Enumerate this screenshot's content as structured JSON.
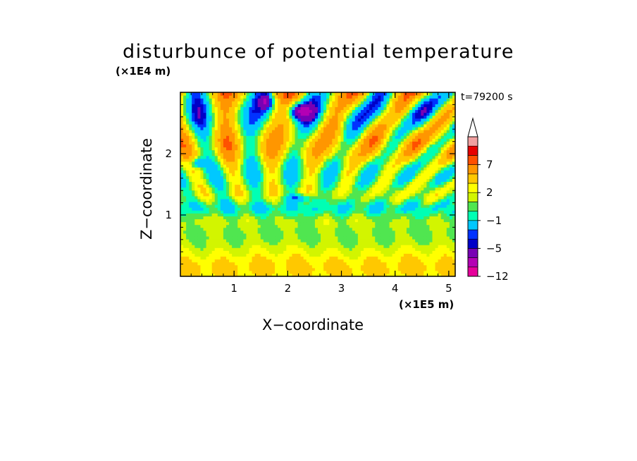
{
  "chart_data": {
    "type": "heatmap",
    "title": "disturbunce of potential temperature",
    "xlabel": "X−coordinate",
    "ylabel": "Z−coordinate",
    "x_unit": "(×1E5 m)",
    "y_unit": "(×1E4 m)",
    "time_label": "t=79200 s",
    "xlim": [
      0,
      5.12
    ],
    "ylim": [
      0,
      3.0
    ],
    "x_ticks": [
      "1",
      "2",
      "3",
      "4",
      "5"
    ],
    "x_tick_values": [
      1,
      2,
      3,
      4,
      5
    ],
    "y_ticks": [
      "1",
      "2"
    ],
    "y_tick_values": [
      1,
      2
    ],
    "colorbar": {
      "levels": [
        -12,
        -10,
        -8,
        -5,
        -4,
        -3,
        -1,
        0,
        1,
        2,
        3,
        5,
        7,
        9,
        11
      ],
      "tick_labels": [
        "−12",
        "−5",
        "−1",
        "2",
        "7"
      ],
      "tick_values": [
        -12,
        -5,
        -1,
        2,
        7
      ],
      "colors": [
        "#e6009a",
        "#b400b4",
        "#7800b4",
        "#0000c8",
        "#0032ff",
        "#00c8ff",
        "#00ffb4",
        "#50e650",
        "#d2f500",
        "#ffff00",
        "#ffc800",
        "#ff9600",
        "#ff5000",
        "#e60000",
        "#f0a0a0"
      ],
      "extend": "max"
    },
    "field_description": "Contoured field of potential temperature disturbance versus horizontal X (0–5.12×10^5 m) and vertical Z (0–3×10^4 m): horizontal banding in the lower and middle layers, V-shaped radiating wave beams centred near X≈2.4 in the upper half, with strong negative patches near the top."
  }
}
